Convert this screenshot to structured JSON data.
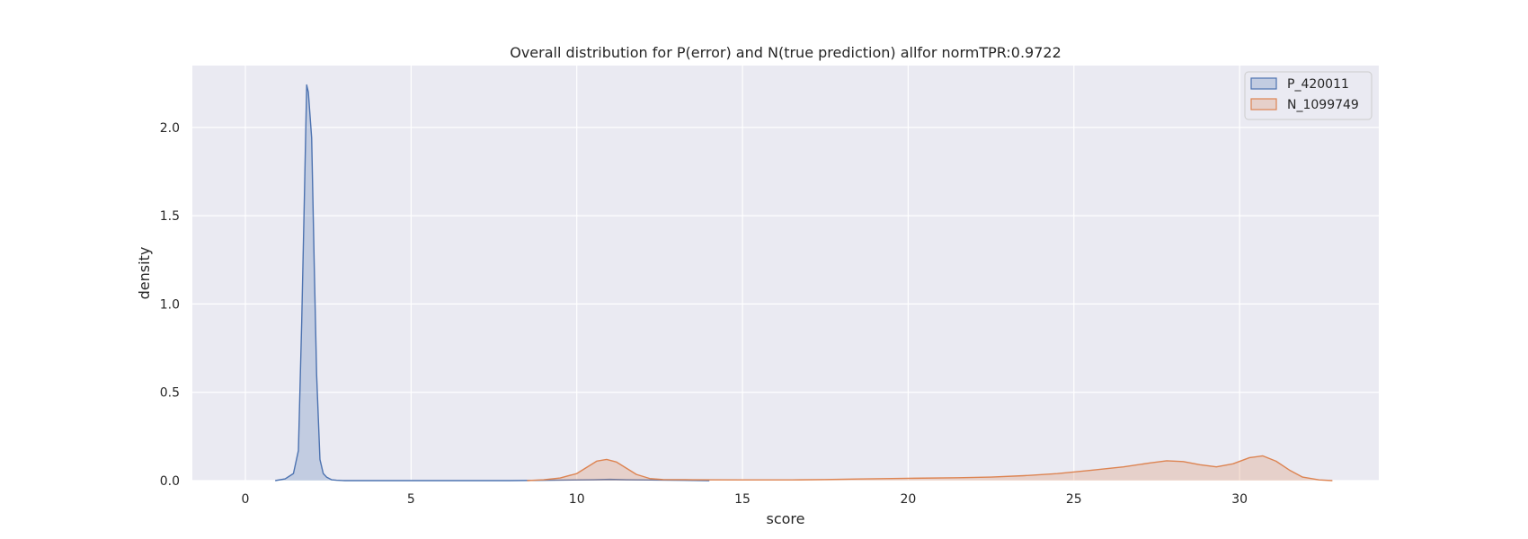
{
  "chart_data": {
    "type": "area",
    "title": "Overall distribution for P(error) and N(true prediction) allfor normTPR:0.9722",
    "xlabel": "score",
    "ylabel": "density",
    "xlim": [
      -1.6,
      34.2
    ],
    "ylim": [
      0,
      2.35
    ],
    "x_ticks": [
      0,
      5,
      10,
      15,
      20,
      25,
      30
    ],
    "y_ticks": [
      0.0,
      0.5,
      1.0,
      1.5,
      2.0
    ],
    "x_tick_labels": [
      "0",
      "5",
      "10",
      "15",
      "20",
      "25",
      "30"
    ],
    "y_tick_labels": [
      "0.0",
      "0.5",
      "1.0",
      "1.5",
      "2.0"
    ],
    "grid": true,
    "legend_position": "upper right",
    "series": [
      {
        "name": "P_420011",
        "color": "#4c72b0",
        "x": [
          0.9,
          1.2,
          1.45,
          1.6,
          1.7,
          1.78,
          1.85,
          1.9,
          2.0,
          2.08,
          2.15,
          2.25,
          2.35,
          2.45,
          2.6,
          2.75,
          3.0,
          3.5,
          5.0,
          8.0,
          10.5,
          11.0,
          11.5,
          14.0
        ],
        "y": [
          0.0,
          0.01,
          0.04,
          0.17,
          0.9,
          1.6,
          2.24,
          2.2,
          1.94,
          1.2,
          0.6,
          0.12,
          0.04,
          0.02,
          0.005,
          0.002,
          0.0,
          0.0,
          0.0,
          0.0,
          0.005,
          0.007,
          0.005,
          0.0
        ]
      },
      {
        "name": "N_1099749",
        "color": "#dd8452",
        "x": [
          8.5,
          9.0,
          9.5,
          10.0,
          10.3,
          10.6,
          10.9,
          11.2,
          11.5,
          11.8,
          12.2,
          12.6,
          13.5,
          15.0,
          16.5,
          17.5,
          18.5,
          20.0,
          21.5,
          22.5,
          23.5,
          24.5,
          25.5,
          26.5,
          27.3,
          27.8,
          28.3,
          28.8,
          29.3,
          29.8,
          30.3,
          30.7,
          31.1,
          31.5,
          31.9,
          32.4,
          32.8
        ],
        "y": [
          0.0,
          0.005,
          0.015,
          0.04,
          0.075,
          0.11,
          0.12,
          0.105,
          0.07,
          0.035,
          0.012,
          0.006,
          0.005,
          0.004,
          0.004,
          0.006,
          0.009,
          0.013,
          0.016,
          0.02,
          0.028,
          0.04,
          0.058,
          0.078,
          0.1,
          0.112,
          0.108,
          0.09,
          0.078,
          0.095,
          0.13,
          0.14,
          0.11,
          0.06,
          0.02,
          0.004,
          0.0
        ]
      }
    ]
  }
}
